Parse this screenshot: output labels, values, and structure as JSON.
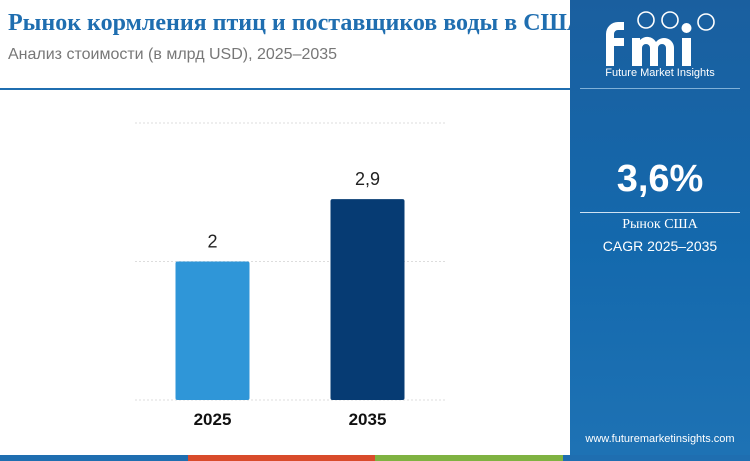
{
  "header": {
    "title": "Рынок кормления птиц и поставщиков воды в США",
    "subtitle": "Анализ стоимости (в млрд USD), 2025–2035"
  },
  "sidebar": {
    "brand_name": "Future Market Insights",
    "cagr_value": "3,6%",
    "cagr_label": "Рынок США",
    "cagr_period": "CAGR 2025–2035",
    "website": "www.futuremarketinsights.com"
  },
  "colors": {
    "title": "#1f6eb0",
    "sidebar_bg": "#1a65a8",
    "bar_2025": "#2f96d8",
    "bar_2035": "#063b73",
    "bottom_band": [
      "#1f6eb0",
      "#d94b2b",
      "#7fb241",
      "#1f6eb0"
    ]
  },
  "icons": {
    "logo": "fmi-logo-icon"
  },
  "chart_data": {
    "type": "bar",
    "categories": [
      "2025",
      "2035"
    ],
    "values": [
      2,
      2.9
    ],
    "value_labels": [
      "2",
      "2,9"
    ],
    "bar_colors": [
      "#2f96d8",
      "#063b73"
    ],
    "ylim": [
      0,
      4
    ],
    "gridlines": [
      0,
      2,
      4
    ],
    "grid": true,
    "title": "",
    "xlabel": "",
    "ylabel": ""
  }
}
